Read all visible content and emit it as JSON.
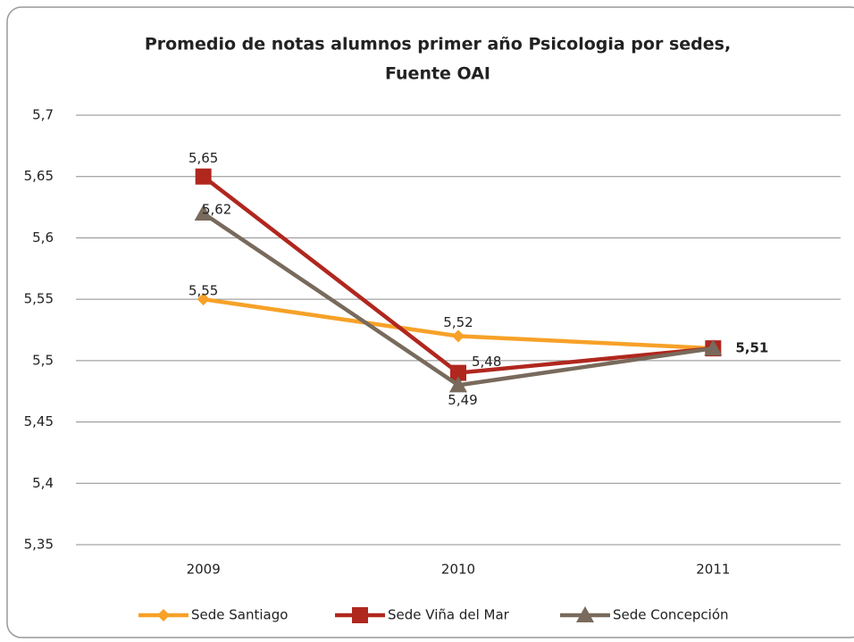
{
  "chart_data": {
    "type": "line",
    "title": [
      "Promedio de notas alumnos primer año Psicologia por sedes,",
      "Fuente OAI"
    ],
    "categories": [
      "2009",
      "2010",
      "2011"
    ],
    "series": [
      {
        "name": "Sede Santiago",
        "color": "#f7a128",
        "marker": "diamond",
        "values": [
          5.55,
          5.52,
          5.51
        ],
        "value_labels": [
          "5,55",
          "5,52",
          null
        ]
      },
      {
        "name": "Sede Viña del Mar",
        "color": "#b0271e",
        "marker": "square",
        "values": [
          5.65,
          5.49,
          5.51
        ],
        "value_labels": [
          "5,65",
          "5,49",
          null
        ]
      },
      {
        "name": "Sede Concepción",
        "color": "#786a5c",
        "marker": "triangle",
        "values": [
          5.62,
          5.48,
          5.51
        ],
        "value_labels": [
          "5,62",
          "5,48",
          "5,51"
        ]
      }
    ],
    "ylim": [
      5.35,
      5.7
    ],
    "yticks": [
      {
        "value": 5.35,
        "label": "5,35"
      },
      {
        "value": 5.4,
        "label": "5,4"
      },
      {
        "value": 5.45,
        "label": "5,45"
      },
      {
        "value": 5.5,
        "label": "5,5"
      },
      {
        "value": 5.55,
        "label": "5,55"
      },
      {
        "value": 5.6,
        "label": "5,6"
      },
      {
        "value": 5.65,
        "label": "5,65"
      },
      {
        "value": 5.7,
        "label": "5,7"
      }
    ],
    "grid": true,
    "legend": "bottom"
  }
}
